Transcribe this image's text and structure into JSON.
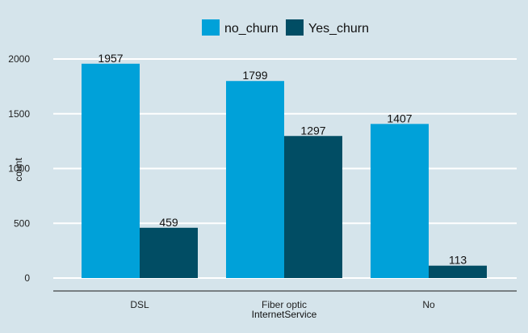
{
  "chart_data": {
    "type": "bar",
    "title": "",
    "xlabel": "InternetService",
    "ylabel": "count",
    "categories": [
      "DSL",
      "Fiber optic",
      "No"
    ],
    "series": [
      {
        "name": "no_churn",
        "values": [
          1957,
          1799,
          1407
        ],
        "color": "#00a1d9"
      },
      {
        "name": "Yes_churn",
        "values": [
          459,
          1297,
          113
        ],
        "color": "#014d64"
      }
    ],
    "ylim": [
      0,
      2000
    ],
    "yticks": [
      0,
      500,
      1000,
      1500,
      2000
    ],
    "grid": "horizontal",
    "legend_position": "top",
    "background_color": "#d5e4eb",
    "gridline_color": "#ffffff"
  }
}
